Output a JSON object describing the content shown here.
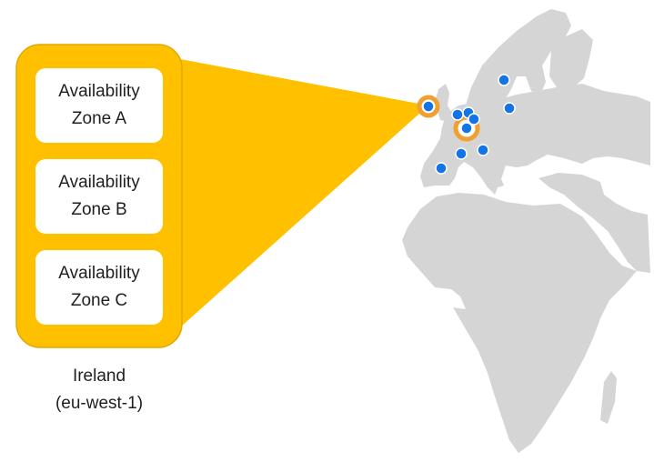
{
  "colors": {
    "region_fill": "#FFC000",
    "region_border": "#E0A800",
    "map_land": "#D5D5D6",
    "location_dot": "#1473E6",
    "selected_ring": "#F0A030"
  },
  "region": {
    "name": "Ireland",
    "code": "(eu-west-1)",
    "availability_zones": [
      {
        "label": "Availability Zone A"
      },
      {
        "label": "Availability Zone B"
      },
      {
        "label": "Availability Zone C"
      }
    ]
  },
  "map": {
    "icon": "europe-africa-map",
    "region_markers": 11,
    "highlighted_markers": 2
  }
}
